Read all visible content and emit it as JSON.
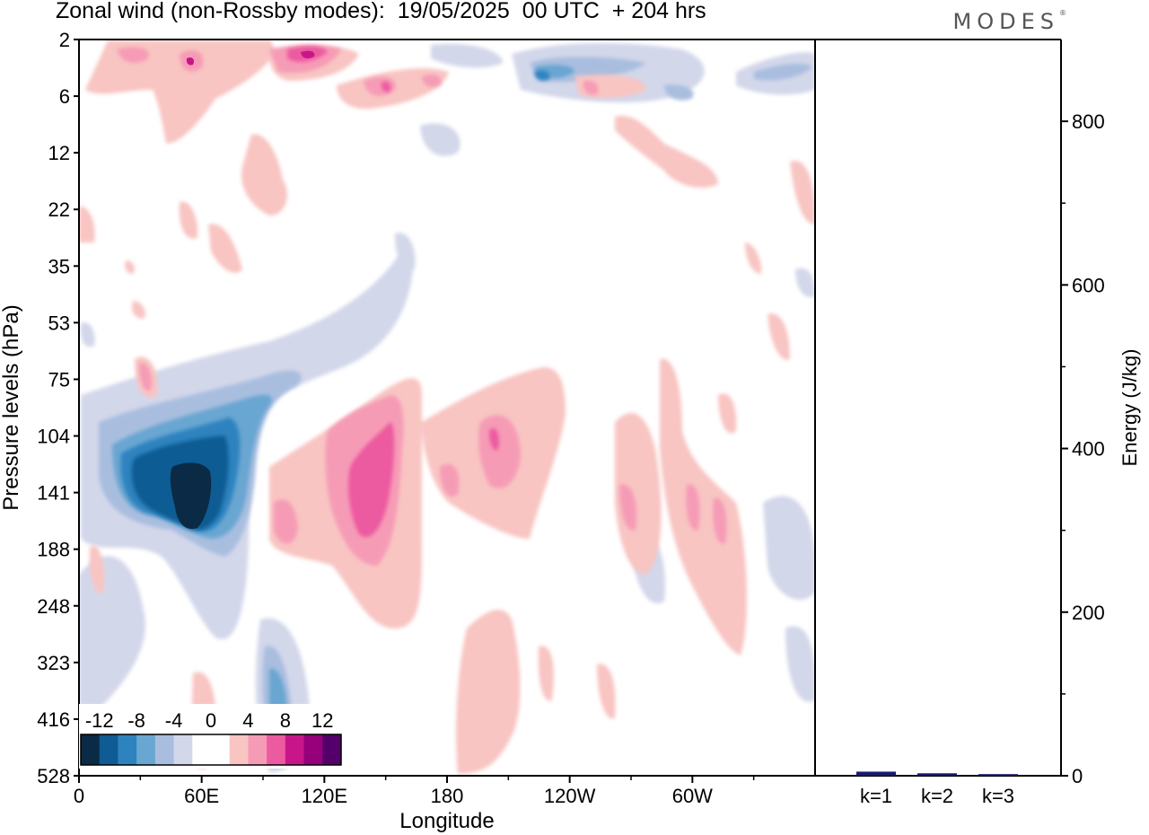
{
  "header": {
    "title": "Zonal wind (non-Rossby modes):  19/05/2025  00 UTC  + 204 hrs",
    "brand": "MODES",
    "brand_mark": "®"
  },
  "chart_data": [
    {
      "type": "heatmap",
      "title": "Zonal wind (non-Rossby modes):  19/05/2025  00 UTC  + 204 hrs",
      "xlabel": "Longitude",
      "ylabel": "Pressure levels (hPa)",
      "x_ticks": [
        "0",
        "60E",
        "120E",
        "180",
        "120W",
        "60W"
      ],
      "x_tick_degrees": [
        0,
        60,
        120,
        180,
        240,
        300
      ],
      "xlim": [
        0,
        360
      ],
      "y_ticks": [
        "2",
        "6",
        "12",
        "22",
        "35",
        "53",
        "75",
        "104",
        "141",
        "188",
        "248",
        "323",
        "416",
        "528"
      ],
      "y_scale": "pressure levels (categorical, top to bottom)",
      "colorbar": {
        "labels": [
          "-12",
          "-8",
          "-4",
          "0",
          "4",
          "8",
          "12"
        ],
        "colors": [
          "#0b2a45",
          "#0e5c93",
          "#2e83bf",
          "#69a6d2",
          "#a9bedf",
          "#d3d7ea",
          "#ffffff",
          "#ffffff",
          "#f8c5c2",
          "#f69bb6",
          "#ec5aa0",
          "#c8168a",
          "#96007a",
          "#54006b"
        ]
      },
      "features": [
        {
          "name": "easterly core",
          "lon": 55,
          "level_hpa": 141,
          "value": -14
        },
        {
          "name": "westerly max",
          "lon": 135,
          "level_hpa": 141,
          "value": 8
        },
        {
          "name": "westerly max",
          "lon": 202,
          "level_hpa": 124,
          "value": 8
        },
        {
          "name": "westerly band",
          "lon": 255,
          "level_hpa": 188,
          "value": 4
        }
      ]
    },
    {
      "type": "bar",
      "categories": [
        "k=1",
        "k=2",
        "k=3"
      ],
      "values": [
        5,
        3,
        2
      ],
      "ylabel": "Energy (J/kg)",
      "ylim": [
        0,
        900
      ],
      "y_ticks": [
        "0",
        "200",
        "400",
        "600",
        "800"
      ],
      "bar_color": "#1a1a6e"
    }
  ]
}
